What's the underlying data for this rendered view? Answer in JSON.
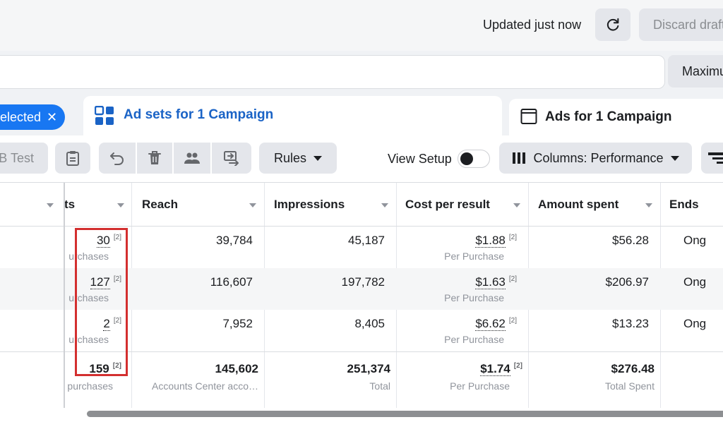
{
  "header": {
    "updated_text": "Updated just now",
    "discard_label": "Discard drafts",
    "max_label": "Maximum"
  },
  "tabs": {
    "selected_pill": "elected",
    "ad_sets": "Ad sets for 1 Campaign",
    "ads": "Ads for 1 Campaign"
  },
  "toolbar": {
    "ab_test": "B Test",
    "rules": "Rules",
    "view_setup": "View Setup",
    "columns": "Columns: Performance"
  },
  "table": {
    "headers": {
      "results": "ts",
      "reach": "Reach",
      "impressions": "Impressions",
      "cost_per_result": "Cost per result",
      "amount_spent": "Amount spent",
      "ends": "Ends"
    },
    "rows": [
      {
        "results": "30",
        "results_sub": "urchases",
        "reach": "39,784",
        "impressions": "45,187",
        "cost": "$1.88",
        "cost_sub": "Per Purchase",
        "spent": "$56.28",
        "ends": "Ong"
      },
      {
        "results": "127",
        "results_sub": "urchases",
        "reach": "116,607",
        "impressions": "197,782",
        "cost": "$1.63",
        "cost_sub": "Per Purchase",
        "spent": "$206.97",
        "ends": "Ong"
      },
      {
        "results": "2",
        "results_sub": "urchases",
        "reach": "7,952",
        "impressions": "8,405",
        "cost": "$6.62",
        "cost_sub": "Per Purchase",
        "spent": "$13.23",
        "ends": "Ong"
      }
    ],
    "totals": {
      "results": "159",
      "results_sub": "purchases",
      "reach": "145,602",
      "reach_sub": "Accounts Center acco…",
      "impressions": "251,374",
      "impressions_sub": "Total",
      "cost": "$1.74",
      "cost_sub": "Per Purchase",
      "spent": "$276.48",
      "spent_sub": "Total Spent"
    },
    "footnote": "[2]"
  },
  "colors": {
    "accent": "#1877f2",
    "tab_text": "#1a63c6",
    "highlight_box": "#d32f2f"
  }
}
